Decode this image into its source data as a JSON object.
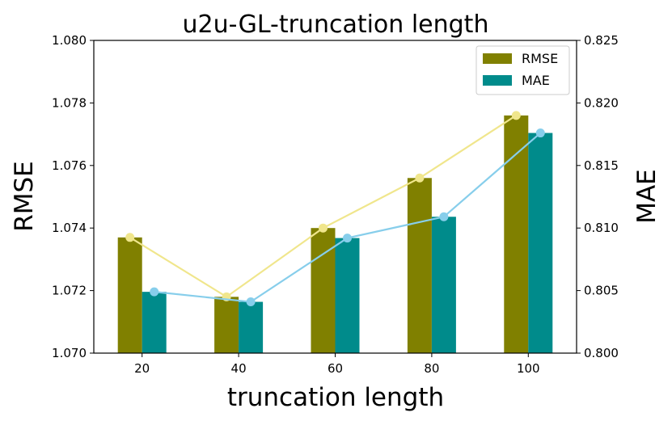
{
  "chart_data": {
    "type": "bar",
    "title": "u2u-GL-truncation length",
    "xlabel": "truncation length",
    "ylabel": "RMSE",
    "y2label": "MAE",
    "categories": [
      "20",
      "40",
      "60",
      "80",
      "100"
    ],
    "ylim": [
      1.07,
      1.08
    ],
    "y2lim": [
      0.8,
      0.825
    ],
    "yticks": [
      "1.070",
      "1.072",
      "1.074",
      "1.076",
      "1.078",
      "1.080"
    ],
    "y2ticks": [
      "0.800",
      "0.805",
      "0.810",
      "0.815",
      "0.820",
      "0.825"
    ],
    "legend_position": "top-right",
    "series": [
      {
        "name": "RMSE",
        "kind": "bar",
        "axis": "left",
        "color": "#808000",
        "values": [
          1.0737,
          1.0718,
          1.074,
          1.0756,
          1.0776
        ]
      },
      {
        "name": "MAE",
        "kind": "bar",
        "axis": "right",
        "color": "#008b8b",
        "values": [
          0.8049,
          0.8041,
          0.8092,
          0.8109,
          0.8176
        ]
      },
      {
        "kind": "line",
        "axis": "left",
        "color": "#f0e68c",
        "values": [
          1.0737,
          1.0718,
          1.074,
          1.0756,
          1.0776
        ]
      },
      {
        "kind": "line",
        "axis": "right",
        "color": "#87ceeb",
        "values": [
          0.8049,
          0.8041,
          0.8092,
          0.8109,
          0.8176
        ]
      }
    ]
  }
}
